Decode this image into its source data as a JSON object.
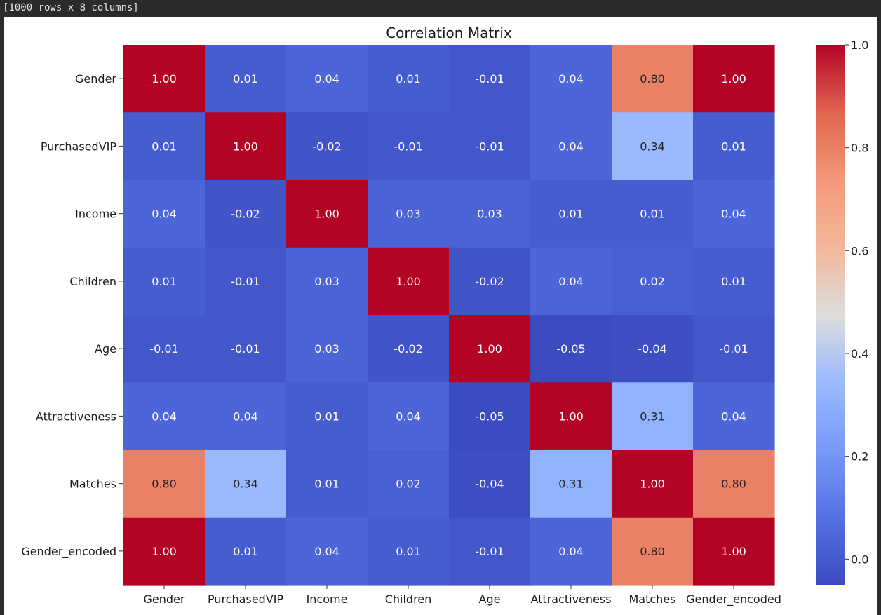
{
  "output_header": "[1000 rows x 8 columns]",
  "chart_data": {
    "type": "heatmap",
    "title": "Correlation Matrix",
    "xlabel": "",
    "ylabel": "",
    "rows": [
      "Gender",
      "PurchasedVIP",
      "Income",
      "Children",
      "Age",
      "Attractiveness",
      "Matches",
      "Gender_encoded"
    ],
    "columns": [
      "Gender",
      "PurchasedVIP",
      "Income",
      "Children",
      "Age",
      "Attractiveness",
      "Matches",
      "Gender_encoded"
    ],
    "values": [
      [
        1.0,
        0.01,
        0.04,
        0.01,
        -0.01,
        0.04,
        0.8,
        1.0
      ],
      [
        0.01,
        1.0,
        -0.02,
        -0.01,
        -0.01,
        0.04,
        0.34,
        0.01
      ],
      [
        0.04,
        -0.02,
        1.0,
        0.03,
        0.03,
        0.01,
        0.01,
        0.04
      ],
      [
        0.01,
        -0.01,
        0.03,
        1.0,
        -0.02,
        0.04,
        0.02,
        0.01
      ],
      [
        -0.01,
        -0.01,
        0.03,
        -0.02,
        1.0,
        -0.05,
        -0.04,
        -0.01
      ],
      [
        0.04,
        0.04,
        0.01,
        0.04,
        -0.05,
        1.0,
        0.31,
        0.04
      ],
      [
        0.8,
        0.34,
        0.01,
        0.02,
        -0.04,
        0.31,
        1.0,
        0.8
      ],
      [
        1.0,
        0.01,
        0.04,
        0.01,
        -0.01,
        0.04,
        0.8,
        1.0
      ]
    ],
    "value_format": "0.00",
    "colormap": "coolwarm",
    "colorbar": {
      "range": [
        -0.05,
        1.0
      ],
      "ticks": [
        0.0,
        0.2,
        0.4,
        0.6,
        0.8,
        1.0
      ],
      "tick_labels": [
        "0.0",
        "0.2",
        "0.4",
        "0.6",
        "0.8",
        "1.0"
      ]
    },
    "annotation_colors": {
      "light": "#ffffff",
      "dark": "#262626"
    }
  }
}
